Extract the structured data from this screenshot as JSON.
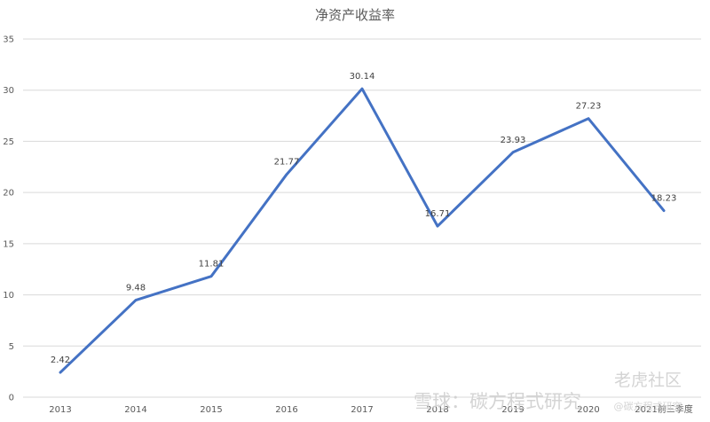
{
  "chart_data": {
    "type": "line",
    "title": "净资产收益率",
    "categories": [
      "2013",
      "2014",
      "2015",
      "2016",
      "2017",
      "2018",
      "2019",
      "2020",
      "2021前三季度"
    ],
    "series": [
      {
        "values": [
          2.42,
          9.48,
          11.81,
          21.77,
          30.14,
          16.71,
          23.93,
          27.23,
          18.23
        ]
      }
    ],
    "data_labels": [
      "2.42",
      "9.48",
      "11.81",
      "21.77",
      "30.14",
      "16.71",
      "23.93",
      "27.23",
      "18.23"
    ],
    "yticks": [
      "0",
      "5",
      "10",
      "15",
      "20",
      "25",
      "30",
      "35"
    ],
    "ylim": [
      0,
      35
    ],
    "grid": true,
    "colors": {
      "series": "#4472c4",
      "grid": "#d9d9d9",
      "text": "#595959"
    }
  },
  "watermarks": {
    "tiger": "老虎社区",
    "xueqiu": "雪球：碳方程式研究",
    "handle": "@碳方程式研究"
  }
}
